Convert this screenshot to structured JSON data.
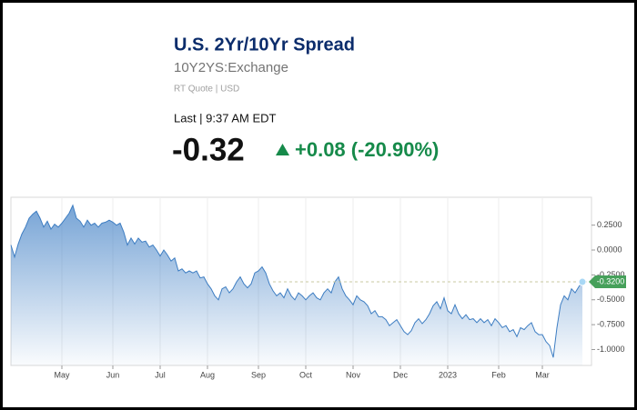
{
  "header": {
    "title": "U.S. 2Yr/10Yr Spread",
    "symbol": "10Y2YS:Exchange",
    "quote_type": "RT Quote | USD",
    "last_time": "Last | 9:37 AM EDT",
    "price": "-0.32",
    "change": "+0.08 (-20.90%)"
  },
  "chart_data": {
    "type": "area",
    "color": "#3d7dc2",
    "values": [
      0.05,
      -0.07,
      0.06,
      0.16,
      0.23,
      0.32,
      0.36,
      0.39,
      0.32,
      0.23,
      0.29,
      0.21,
      0.26,
      0.23,
      0.27,
      0.32,
      0.37,
      0.45,
      0.32,
      0.29,
      0.23,
      0.3,
      0.25,
      0.27,
      0.23,
      0.27,
      0.28,
      0.3,
      0.28,
      0.25,
      0.27,
      0.18,
      0.05,
      0.12,
      0.06,
      0.12,
      0.08,
      0.09,
      0.03,
      0.05,
      0,
      -0.06,
      0,
      -0.05,
      -0.11,
      -0.08,
      -0.21,
      -0.19,
      -0.23,
      -0.21,
      -0.23,
      -0.21,
      -0.28,
      -0.27,
      -0.34,
      -0.39,
      -0.46,
      -0.5,
      -0.39,
      -0.37,
      -0.43,
      -0.39,
      -0.32,
      -0.27,
      -0.34,
      -0.38,
      -0.34,
      -0.23,
      -0.21,
      -0.17,
      -0.23,
      -0.34,
      -0.41,
      -0.46,
      -0.43,
      -0.48,
      -0.39,
      -0.46,
      -0.5,
      -0.43,
      -0.46,
      -0.5,
      -0.46,
      -0.43,
      -0.48,
      -0.5,
      -0.43,
      -0.39,
      -0.43,
      -0.32,
      -0.27,
      -0.39,
      -0.46,
      -0.5,
      -0.55,
      -0.46,
      -0.5,
      -0.52,
      -0.56,
      -0.64,
      -0.61,
      -0.67,
      -0.67,
      -0.7,
      -0.76,
      -0.73,
      -0.7,
      -0.76,
      -0.82,
      -0.85,
      -0.81,
      -0.73,
      -0.69,
      -0.74,
      -0.7,
      -0.64,
      -0.56,
      -0.52,
      -0.59,
      -0.48,
      -0.61,
      -0.64,
      -0.55,
      -0.64,
      -0.69,
      -0.65,
      -0.7,
      -0.69,
      -0.73,
      -0.69,
      -0.73,
      -0.7,
      -0.76,
      -0.69,
      -0.73,
      -0.78,
      -0.76,
      -0.82,
      -0.8,
      -0.87,
      -0.78,
      -0.8,
      -0.76,
      -0.73,
      -0.82,
      -0.85,
      -0.85,
      -0.92,
      -0.96,
      -1.08,
      -0.78,
      -0.55,
      -0.46,
      -0.5,
      -0.39,
      -0.43,
      -0.37,
      -0.32
    ],
    "xlim": [
      0,
      159.5
    ],
    "xticks": [
      {
        "value": 14,
        "label": "May"
      },
      {
        "value": 28,
        "label": "Jun"
      },
      {
        "value": 41,
        "label": "Jul"
      },
      {
        "value": 54,
        "label": "Aug"
      },
      {
        "value": 68,
        "label": "Sep"
      },
      {
        "value": 81,
        "label": "Oct"
      },
      {
        "value": 94,
        "label": "Nov"
      },
      {
        "value": 107,
        "label": "Dec"
      },
      {
        "value": 120,
        "label": "2023"
      },
      {
        "value": 134,
        "label": "Feb"
      },
      {
        "value": 146,
        "label": "Mar"
      }
    ],
    "ylim": [
      -1.16,
      0.53
    ],
    "yticks": [
      {
        "value": 0.25,
        "label": "0.2500"
      },
      {
        "value": 0,
        "label": "0.0000"
      },
      {
        "value": -0.25,
        "label": "-0.2500"
      },
      {
        "value": -0.5,
        "label": "-0.5000"
      },
      {
        "value": -0.75,
        "label": "-0.7500"
      },
      {
        "value": -1,
        "label": "-1.0000"
      }
    ],
    "last_value": {
      "value": -0.32,
      "label": "-0.3200"
    },
    "grid": true
  }
}
